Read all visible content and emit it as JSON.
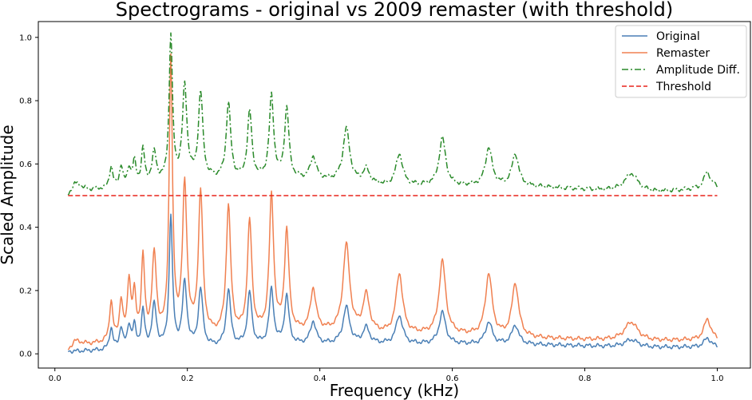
{
  "chart_data": {
    "type": "line",
    "title": "Spectrograms - original vs 2009 remaster (with threshold)",
    "xlabel": "Frequency (kHz)",
    "ylabel": "Scaled Amplitude",
    "xlim": [
      -0.025,
      1.05
    ],
    "ylim": [
      -0.045,
      1.05
    ],
    "xticks": [
      0.0,
      0.2,
      0.4,
      0.6,
      0.8,
      1.0
    ],
    "xtick_labels": [
      "0.0",
      "0.2",
      "0.4",
      "0.6",
      "0.8",
      "1.0"
    ],
    "yticks": [
      0.0,
      0.2,
      0.4,
      0.6,
      0.8,
      1.0
    ],
    "ytick_labels": [
      "0.0",
      "0.2",
      "0.4",
      "0.6",
      "0.8",
      "1.0"
    ],
    "grid": false,
    "legend": "top-right",
    "series": [
      {
        "name": "Original",
        "color": "#4a7fb5",
        "style": "solid",
        "base": [
          [
            0.02,
            0.007
          ],
          [
            0.1,
            0.012
          ],
          [
            0.2,
            0.018
          ],
          [
            0.3,
            0.025
          ],
          [
            0.4,
            0.03
          ],
          [
            0.5,
            0.03
          ],
          [
            0.6,
            0.03
          ],
          [
            0.7,
            0.03
          ],
          [
            0.8,
            0.025
          ],
          [
            0.9,
            0.02
          ],
          [
            1.0,
            0.022
          ]
        ],
        "peaks": [
          [
            0.085,
            0.08,
            0.003
          ],
          [
            0.1,
            0.08,
            0.003
          ],
          [
            0.112,
            0.085,
            0.003
          ],
          [
            0.12,
            0.08,
            0.003
          ],
          [
            0.133,
            0.13,
            0.003
          ],
          [
            0.15,
            0.15,
            0.004
          ],
          [
            0.175,
            0.43,
            0.003
          ],
          [
            0.196,
            0.22,
            0.004
          ],
          [
            0.22,
            0.2,
            0.004
          ],
          [
            0.262,
            0.2,
            0.004
          ],
          [
            0.294,
            0.19,
            0.004
          ],
          [
            0.327,
            0.2,
            0.004
          ],
          [
            0.35,
            0.18,
            0.004
          ],
          [
            0.39,
            0.1,
            0.005
          ],
          [
            0.44,
            0.145,
            0.006
          ],
          [
            0.47,
            0.08,
            0.006
          ],
          [
            0.52,
            0.12,
            0.006
          ],
          [
            0.585,
            0.13,
            0.006
          ],
          [
            0.655,
            0.1,
            0.006
          ],
          [
            0.695,
            0.09,
            0.006
          ],
          [
            0.87,
            0.045,
            0.012
          ],
          [
            0.985,
            0.05,
            0.006
          ]
        ]
      },
      {
        "name": "Remaster",
        "color": "#f08050",
        "style": "solid",
        "base": [
          [
            0.02,
            0.01
          ],
          [
            0.03,
            0.04
          ],
          [
            0.05,
            0.03
          ],
          [
            0.1,
            0.035
          ],
          [
            0.2,
            0.05
          ],
          [
            0.3,
            0.06
          ],
          [
            0.4,
            0.07
          ],
          [
            0.5,
            0.06
          ],
          [
            0.6,
            0.06
          ],
          [
            0.7,
            0.05
          ],
          [
            0.8,
            0.045
          ],
          [
            0.9,
            0.04
          ],
          [
            1.0,
            0.045
          ]
        ],
        "peaks": [
          [
            0.085,
            0.16,
            0.003
          ],
          [
            0.1,
            0.16,
            0.003
          ],
          [
            0.112,
            0.22,
            0.003
          ],
          [
            0.12,
            0.17,
            0.003
          ],
          [
            0.133,
            0.29,
            0.003
          ],
          [
            0.15,
            0.3,
            0.004
          ],
          [
            0.175,
            0.92,
            0.003
          ],
          [
            0.196,
            0.52,
            0.004
          ],
          [
            0.22,
            0.5,
            0.004
          ],
          [
            0.262,
            0.46,
            0.004
          ],
          [
            0.294,
            0.41,
            0.004
          ],
          [
            0.327,
            0.49,
            0.004
          ],
          [
            0.35,
            0.38,
            0.004
          ],
          [
            0.39,
            0.2,
            0.005
          ],
          [
            0.44,
            0.34,
            0.006
          ],
          [
            0.47,
            0.18,
            0.006
          ],
          [
            0.52,
            0.25,
            0.006
          ],
          [
            0.585,
            0.29,
            0.006
          ],
          [
            0.655,
            0.25,
            0.006
          ],
          [
            0.695,
            0.22,
            0.006
          ],
          [
            0.87,
            0.1,
            0.012
          ],
          [
            0.985,
            0.11,
            0.006
          ]
        ]
      },
      {
        "name": "Amplitude Diff.",
        "color": "#2a8a2a",
        "style": "dashdot",
        "base": [
          [
            0.02,
            0.5
          ],
          [
            0.03,
            0.54
          ],
          [
            0.05,
            0.52
          ],
          [
            0.1,
            0.52
          ],
          [
            0.2,
            0.55
          ],
          [
            0.3,
            0.55
          ],
          [
            0.4,
            0.55
          ],
          [
            0.5,
            0.53
          ],
          [
            0.6,
            0.53
          ],
          [
            0.7,
            0.53
          ],
          [
            0.8,
            0.52
          ],
          [
            0.9,
            0.51
          ],
          [
            1.0,
            0.525
          ]
        ],
        "peaks": [
          [
            0.085,
            0.59,
            0.003
          ],
          [
            0.1,
            0.59,
            0.003
          ],
          [
            0.112,
            0.58,
            0.003
          ],
          [
            0.12,
            0.6,
            0.003
          ],
          [
            0.133,
            0.64,
            0.003
          ],
          [
            0.15,
            0.63,
            0.004
          ],
          [
            0.175,
            1.0,
            0.003
          ],
          [
            0.196,
            0.84,
            0.004
          ],
          [
            0.22,
            0.82,
            0.004
          ],
          [
            0.262,
            0.79,
            0.004
          ],
          [
            0.294,
            0.76,
            0.004
          ],
          [
            0.327,
            0.81,
            0.004
          ],
          [
            0.35,
            0.77,
            0.004
          ],
          [
            0.39,
            0.62,
            0.005
          ],
          [
            0.44,
            0.71,
            0.006
          ],
          [
            0.47,
            0.58,
            0.006
          ],
          [
            0.52,
            0.63,
            0.006
          ],
          [
            0.585,
            0.68,
            0.006
          ],
          [
            0.655,
            0.65,
            0.006
          ],
          [
            0.695,
            0.63,
            0.006
          ],
          [
            0.87,
            0.57,
            0.012
          ],
          [
            0.985,
            0.575,
            0.006
          ]
        ]
      },
      {
        "name": "Threshold",
        "color": "#e8241c",
        "style": "dashed",
        "x": [
          0.02,
          1.0
        ],
        "y": [
          0.5,
          0.5
        ]
      }
    ]
  }
}
